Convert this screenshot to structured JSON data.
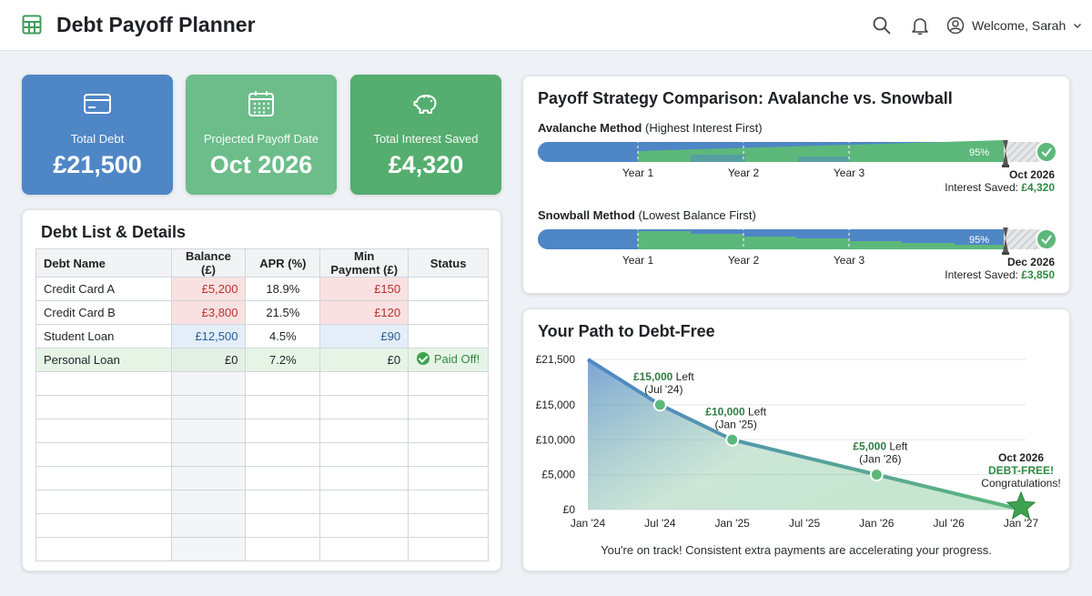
{
  "app": {
    "title": "Debt Payoff Planner",
    "user_greeting": "Welcome, Sarah"
  },
  "colors": {
    "blue": "#4f86c6",
    "green": "#5cb87a",
    "dark_green": "#3ea34f",
    "red_text": "#b8322f"
  },
  "stats": [
    {
      "label": "Total Debt",
      "value": "£21,500",
      "icon": "credit-card-icon",
      "color": "#4f86c6"
    },
    {
      "label": "Projected Payoff Date",
      "value": "Oct 2026",
      "icon": "calendar-icon",
      "color": "#6cbd8a"
    },
    {
      "label": "Total Interest Saved",
      "value": "£4,320",
      "icon": "piggy-bank-icon",
      "color": "#55ad6f"
    }
  ],
  "debt_list": {
    "title": "Debt List & Details",
    "columns": [
      "Debt Name",
      "Balance (£)",
      "APR (%)",
      "Min Payment (£)",
      "Status"
    ],
    "rows": [
      {
        "name": "Credit Card A",
        "balance": "£5,200",
        "apr": "18.9%",
        "min": "£150",
        "status": ""
      },
      {
        "name": "Credit Card B",
        "balance": "£3,800",
        "apr": "21.5%",
        "min": "£120",
        "status": ""
      },
      {
        "name": "Student Loan",
        "balance": "£12,500",
        "apr": "4.5%",
        "min": "£90",
        "status": ""
      },
      {
        "name": "Personal Loan",
        "balance": "£0",
        "apr": "7.2%",
        "min": "£0",
        "status": "Paid Off!"
      }
    ]
  },
  "strategy": {
    "title": "Payoff Strategy Comparison: Avalanche vs. Snowball",
    "years": [
      "Year 1",
      "Year 2",
      "Year 3"
    ],
    "avalanche": {
      "name": "Avalanche Method",
      "desc": "(Highest Interest First)",
      "percent": "95%",
      "progress": 0.95,
      "end_date": "Oct 2026",
      "saved_label": "Interest Saved:",
      "saved": "£4,320"
    },
    "snowball": {
      "name": "Snowball Method",
      "desc": "(Lowest Balance First)",
      "percent": "95%",
      "progress": 0.95,
      "end_date": "Dec 2026",
      "saved_label": "Interest Saved:",
      "saved": "£3,850"
    }
  },
  "path": {
    "title": "Your Path to Debt-Free",
    "footer": "You're on track! Consistent extra payments are accelerating your progress.",
    "final_callout": {
      "date": "Oct 2026",
      "label": "DEBT-FREE!",
      "message": "Congratulations!"
    }
  },
  "chart_data": {
    "type": "area",
    "title": "Your Path to Debt-Free",
    "x_ticks": [
      "Jan '24",
      "Jul '24",
      "Jan '25",
      "Jul '25",
      "Jan '26",
      "Jul '26",
      "Jan '27"
    ],
    "y_ticks": [
      "£0",
      "£5,000",
      "£10,000",
      "£15,000",
      "£21,500"
    ],
    "ylim": [
      0,
      21500
    ],
    "points": [
      {
        "x": "Jan '24",
        "y": 21500
      },
      {
        "x": "Jul '24",
        "y": 15000,
        "label_amount": "£15,000",
        "label_word": "Left",
        "label_date": "(Jul '24)"
      },
      {
        "x": "Jan '25",
        "y": 10000,
        "label_amount": "£10,000",
        "label_word": "Left",
        "label_date": "(Jan '25)"
      },
      {
        "x": "Jan '26",
        "y": 5000,
        "label_amount": "£5,000",
        "label_word": "Left",
        "label_date": "(Jan '26)"
      },
      {
        "x": "Jan '27",
        "y": 0
      }
    ],
    "grid": true
  }
}
